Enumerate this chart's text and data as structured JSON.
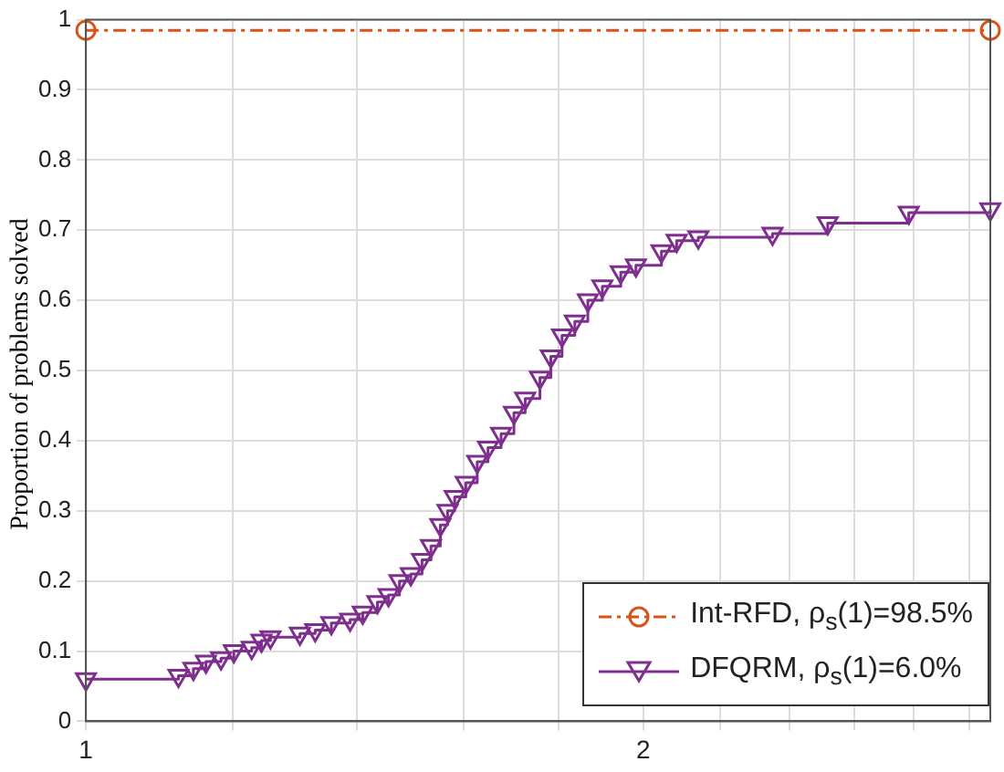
{
  "chart_data": {
    "type": "step",
    "ylabel": "Proportion of problems solved",
    "log": "x",
    "xlim": [
      1,
      3.08
    ],
    "xticks": [
      1,
      {
        "value": 1.2,
        "label": null
      },
      {
        "value": 1.4,
        "label": null
      },
      {
        "value": 1.6,
        "label": null
      },
      {
        "value": 1.8,
        "label": null
      },
      2,
      {
        "value": 2.2,
        "label": null
      },
      {
        "value": 2.4,
        "label": null
      },
      {
        "value": 2.6,
        "label": null
      },
      {
        "value": 2.8,
        "label": null
      },
      {
        "value": 3,
        "label": null
      }
    ],
    "ylim": [
      0,
      1
    ],
    "yticks": [
      0,
      0.1,
      0.2,
      0.3,
      0.4,
      0.5,
      0.6,
      0.7,
      0.8,
      0.9,
      1
    ],
    "grid": true,
    "legend": "bottom right",
    "series": [
      {
        "name": "Int-RFD, ρ$_{s}$(1)=98.5%",
        "color": "#d95319",
        "marker": "circle",
        "line_style": "dashed",
        "x": [
          1,
          3.08
        ],
        "values": [
          0.985,
          0.985
        ]
      },
      {
        "name": "DFQRM, ρ$_{s}$(1)=6.0%",
        "color": "#7e2f8e",
        "marker": "triangle",
        "line_style": "solid",
        "x": [
          1,
          1.122,
          1.143,
          1.161,
          1.183,
          1.202,
          1.229,
          1.244,
          1.258,
          1.305,
          1.33,
          1.357,
          1.389,
          1.411,
          1.437,
          1.457,
          1.477,
          1.498,
          1.519,
          1.536,
          1.554,
          1.568,
          1.582,
          1.604,
          1.627,
          1.649,
          1.676,
          1.703,
          1.727,
          1.759,
          1.783,
          1.808,
          1.837,
          1.867,
          1.901,
          1.945,
          1.982,
          2.046,
          2.085,
          2.142,
          2.349,
          2.516,
          2.783,
          3.08
        ],
        "values": [
          0.06,
          0.065,
          0.075,
          0.085,
          0.09,
          0.1,
          0.105,
          0.115,
          0.12,
          0.125,
          0.13,
          0.14,
          0.145,
          0.155,
          0.17,
          0.18,
          0.2,
          0.21,
          0.23,
          0.25,
          0.28,
          0.3,
          0.32,
          0.34,
          0.37,
          0.39,
          0.41,
          0.44,
          0.46,
          0.49,
          0.52,
          0.55,
          0.57,
          0.6,
          0.62,
          0.64,
          0.65,
          0.67,
          0.685,
          0.69,
          0.695,
          0.71,
          0.725,
          0.73
        ]
      }
    ]
  }
}
